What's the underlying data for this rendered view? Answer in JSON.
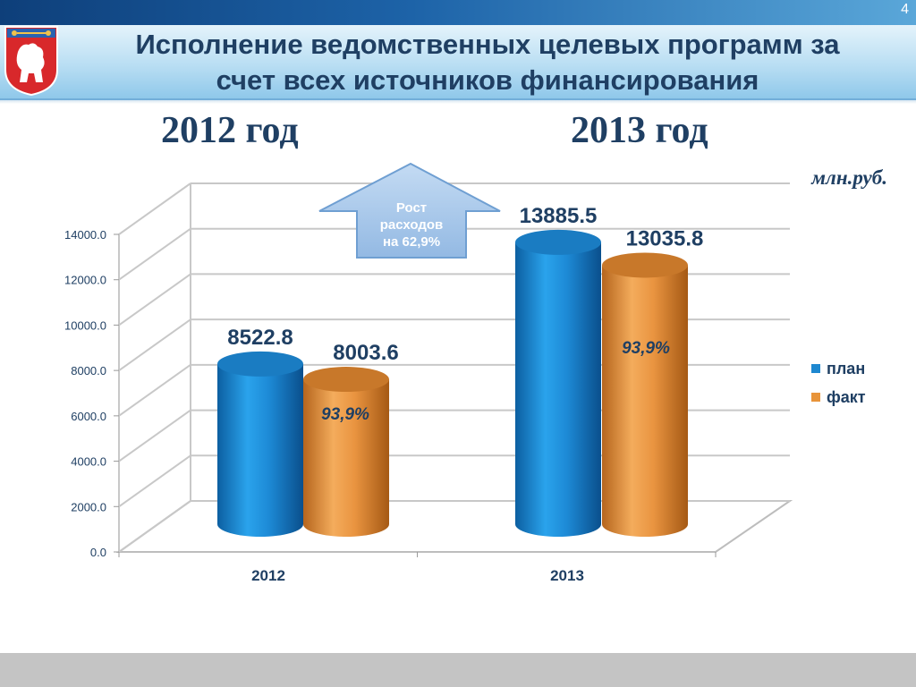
{
  "slide": {
    "page_number": "4",
    "title_line1": "Исполнение ведомственных целевых программ за",
    "title_line2": "счет всех источников финансирования",
    "year_heading_left": "2012 год",
    "year_heading_right": "2013 год",
    "unit": "млн.руб.",
    "logo_icon": "city-coat-of-arms-icon"
  },
  "callout": {
    "line1": "Рост",
    "line2": "расходов",
    "line3": "на 62,9%"
  },
  "colors": {
    "plan": "#1e88d0",
    "fact": "#e8943a",
    "title": "#1f3f63",
    "arrow": "#a9c8ea"
  },
  "chart_data": {
    "type": "bar",
    "style": "3d-cylinder",
    "categories": [
      "2012",
      "2013"
    ],
    "series": [
      {
        "name": "план",
        "values": [
          8522.8,
          13885.5
        ],
        "labels": [
          "8522.8",
          "13885.5"
        ]
      },
      {
        "name": "факт",
        "values": [
          8003.6,
          13035.8
        ],
        "labels": [
          "8003.6",
          "13035.8"
        ]
      }
    ],
    "percent_labels": [
      "93,9%",
      "93,9%"
    ],
    "ylim": [
      0,
      14000
    ],
    "yticks": [
      "0.0",
      "2000.0",
      "4000.0",
      "6000.0",
      "8000.0",
      "10000.0",
      "12000.0",
      "14000.0"
    ],
    "grid": true,
    "legend_position": "right"
  }
}
